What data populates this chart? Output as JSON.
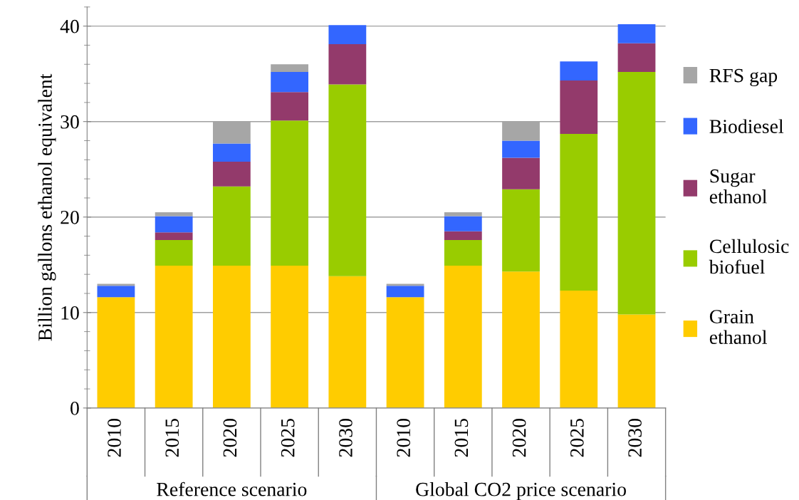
{
  "chart_data": {
    "type": "bar",
    "stacked": true,
    "ylabel": "Billion gallons ethanol equivalent",
    "categories": [
      "2010",
      "2015",
      "2020",
      "2025",
      "2030",
      "2010",
      "2015",
      "2020",
      "2025",
      "2030"
    ],
    "annotations": [
      "Reference scenario",
      "Global CO2 price scenario"
    ],
    "ylim": [
      0,
      42
    ],
    "yticks": [
      0,
      10,
      20,
      30,
      40
    ],
    "grid": "y",
    "legend": "right",
    "series": [
      {
        "name": "Grain\nethanol",
        "color": "#ffcc00",
        "values": [
          11.6,
          14.9,
          14.9,
          14.9,
          13.8,
          11.6,
          14.9,
          14.3,
          12.3,
          9.8
        ]
      },
      {
        "name": "Cellulosic\nbiofuel",
        "color": "#99cc00",
        "values": [
          null,
          2.7,
          8.3,
          15.2,
          20.1,
          null,
          2.7,
          8.6,
          16.4,
          25.4
        ]
      },
      {
        "name": "Sugar\nethanol",
        "color": "#933a6b",
        "values": [
          null,
          0.8,
          2.6,
          3.0,
          4.2,
          null,
          0.9,
          3.3,
          5.6,
          3.0
        ]
      },
      {
        "name": "Biodiesel",
        "color": "#3366ff",
        "values": [
          1.2,
          1.7,
          1.9,
          2.1,
          2.0,
          1.2,
          1.6,
          1.8,
          2.0,
          2.0
        ]
      },
      {
        "name": "RFS gap",
        "color": "#a6a6a6",
        "values": [
          0.2,
          0.4,
          2.3,
          0.8,
          null,
          0.2,
          0.4,
          2.0,
          null,
          null
        ]
      }
    ]
  }
}
